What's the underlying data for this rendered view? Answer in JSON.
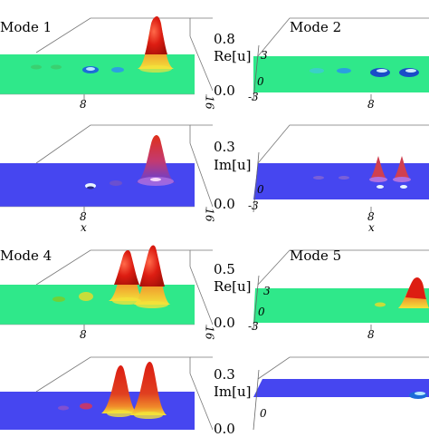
{
  "figure": {
    "rows": [
      {
        "left": {
          "mode_label": "Mode 1",
          "scale_top": "0.8",
          "scale_axis": "Re[u]",
          "scale_bottom": "0.0",
          "x_ticks": [
            "8",
            "16"
          ],
          "x_label": ""
        },
        "right": {
          "mode_label": "Mode 2",
          "y_ticks": [
            "3",
            "0",
            "-3"
          ],
          "x_tick": "8",
          "x_label": ""
        }
      },
      {
        "left": {
          "mode_label": "",
          "scale_top": "0.3",
          "scale_axis": "Im[u]",
          "scale_bottom": "0.0",
          "x_ticks": [
            "8",
            "16"
          ],
          "x_label": "x"
        },
        "right": {
          "mode_label": "",
          "y_ticks": [
            "0",
            "-3"
          ],
          "x_tick": "8",
          "x_label": "x"
        }
      },
      {
        "left": {
          "mode_label": "Mode 4",
          "scale_top": "0.5",
          "scale_axis": "Re[u]",
          "scale_bottom": "0.0",
          "x_ticks": [
            "8",
            "16"
          ],
          "x_label": ""
        },
        "right": {
          "mode_label": "Mode 5",
          "y_ticks": [
            "3",
            "0",
            "-3"
          ],
          "x_tick": "8",
          "x_label": ""
        }
      },
      {
        "left": {
          "mode_label": "",
          "scale_top": "0.3",
          "scale_axis": "Im[u]",
          "scale_bottom": "0.0",
          "x_ticks": [],
          "x_label": ""
        },
        "right": {
          "mode_label": "",
          "y_ticks": [
            "0"
          ],
          "x_tick": "",
          "x_label": ""
        }
      }
    ]
  },
  "colors": {
    "green_floor": "#2fe88a",
    "blue_floor": "#4646f0",
    "peak_red": "#dd1d12",
    "peak_yellow": "#f3e23a",
    "dip_blue": "#1c6cd8"
  }
}
